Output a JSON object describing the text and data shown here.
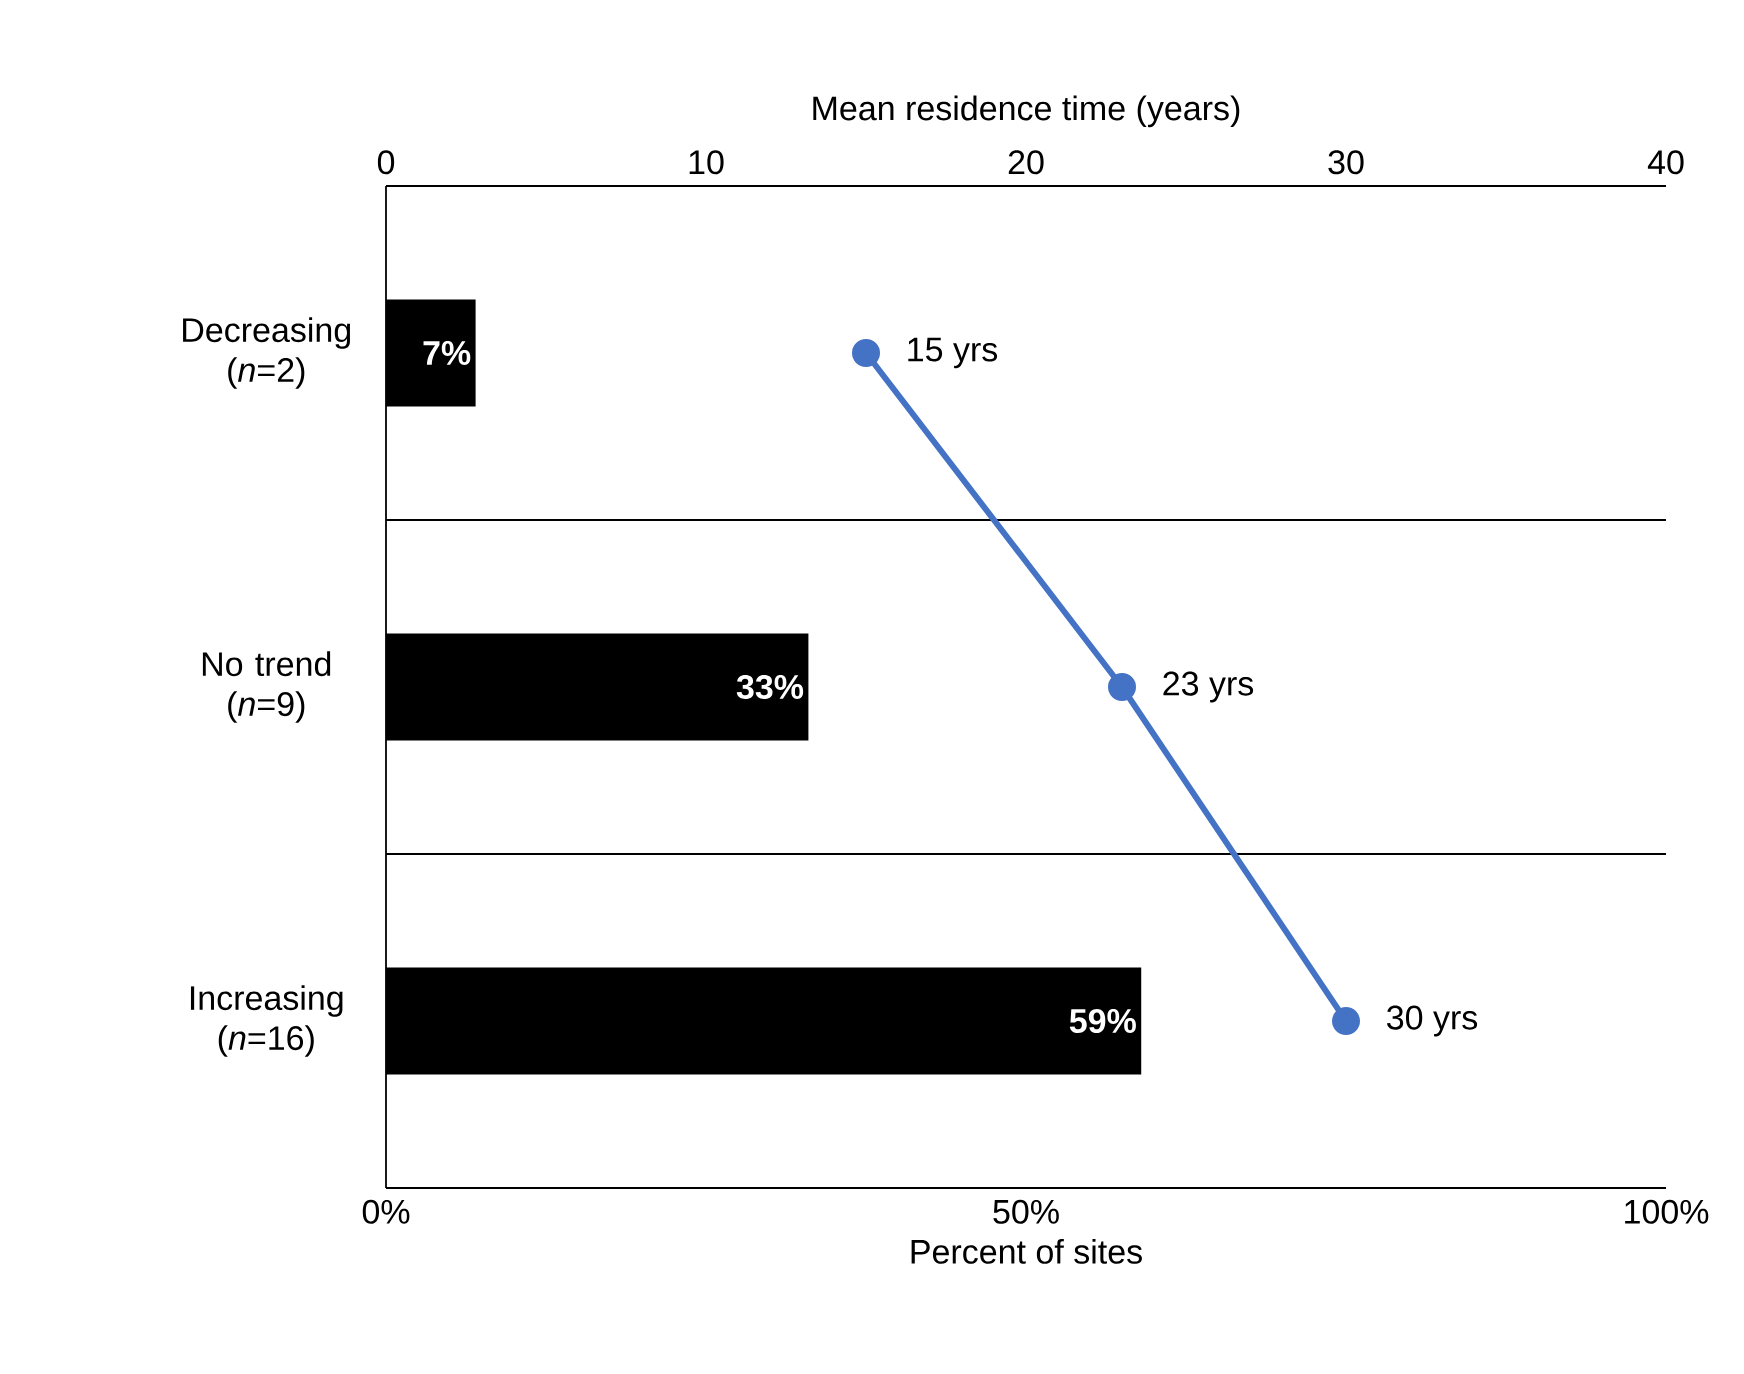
{
  "chart_data": {
    "type": "bar",
    "orientation": "horizontal",
    "categories": [
      "Decreasing (*n*=2)",
      "No trend (*n*=9)",
      "Increasing (*n*=16)"
    ],
    "xlabel": "Percent of sites",
    "x2label": "Mean residence time (years)",
    "xlim": [
      0,
      100
    ],
    "xticks": [
      {
        "value": 0,
        "label": "0%"
      },
      {
        "value": 50,
        "label": "50%"
      },
      {
        "value": 100,
        "label": "100%"
      }
    ],
    "x2lim": [
      0,
      40
    ],
    "x2ticks": [
      0,
      10,
      20,
      30,
      40
    ],
    "grid": "y",
    "marker": "circle",
    "series": [
      {
        "color": "#000000",
        "values": [
          7,
          33,
          59
        ],
        "value_labels": [
          "7%",
          "33%",
          "59%"
        ]
      },
      {
        "type": "line",
        "axis": "x2",
        "color": "#4472c4",
        "values": [
          15,
          23,
          30
        ],
        "value_labels": [
          "15 yrs",
          "23 yrs",
          "30 yrs"
        ]
      }
    ]
  }
}
